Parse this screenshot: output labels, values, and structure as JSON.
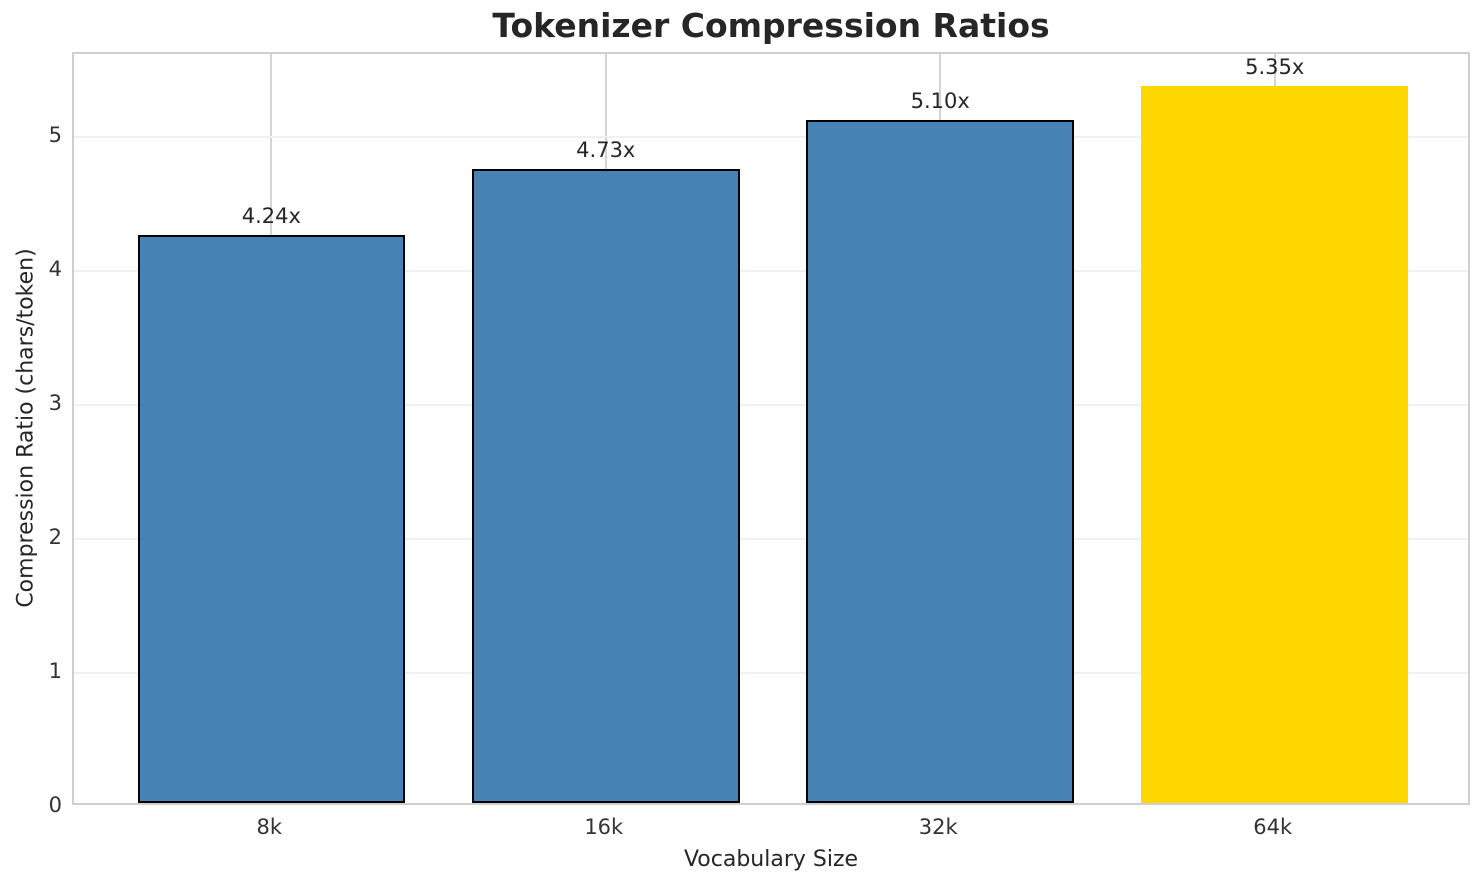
{
  "chart_data": {
    "type": "bar",
    "title": "Tokenizer Compression Ratios",
    "xlabel": "Vocabulary Size",
    "ylabel": "Compression Ratio (chars/token)",
    "categories": [
      "8k",
      "16k",
      "32k",
      "64k"
    ],
    "values": [
      4.24,
      4.73,
      5.1,
      5.35
    ],
    "bar_labels": [
      "4.24x",
      "4.73x",
      "5.10x",
      "5.35x"
    ],
    "bar_colors": [
      "#4682B4",
      "#4682B4",
      "#4682B4",
      "#FFD700"
    ],
    "bar_edge_colors": [
      "#000000",
      "#000000",
      "#000000",
      "none"
    ],
    "base_color": "#4682B4",
    "highlight_color": "#FFD700",
    "yticks": [
      "0",
      "1",
      "2",
      "3",
      "4",
      "5"
    ],
    "ytick_values": [
      0,
      1,
      2,
      3,
      4,
      5
    ],
    "ylim": [
      0,
      5.62
    ],
    "bar_width_fraction": 0.8,
    "grid": "both",
    "legend": "none"
  }
}
